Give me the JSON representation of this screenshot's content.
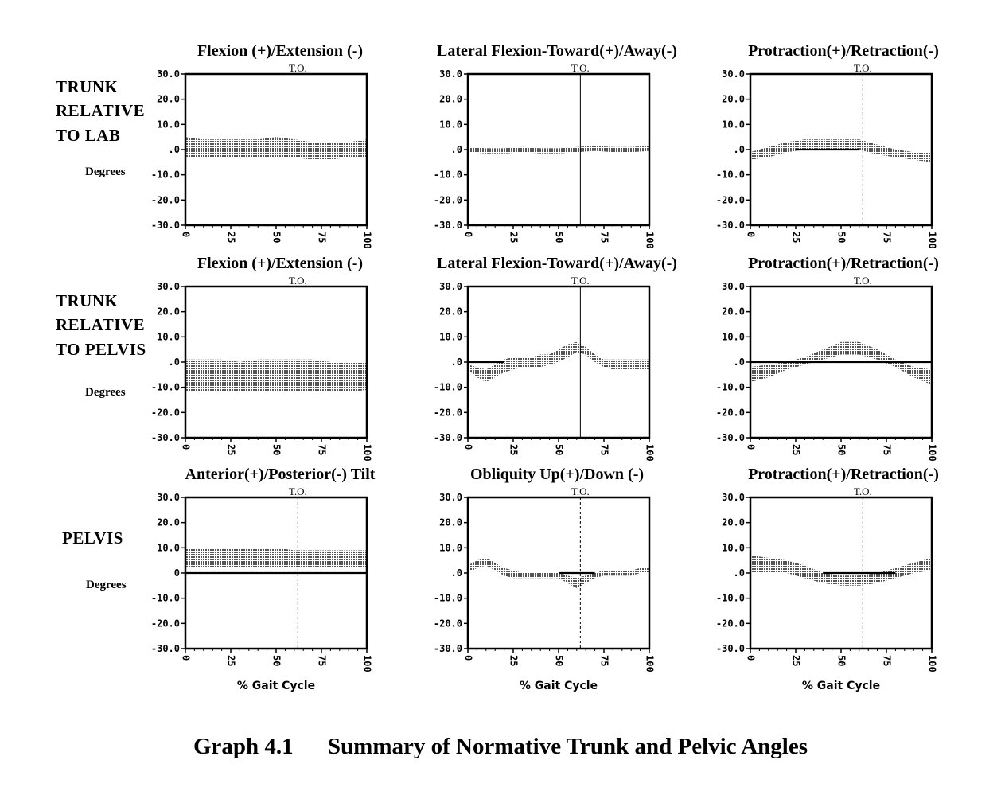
{
  "caption": {
    "number": "Graph 4.1",
    "text": "Summary of Normative Trunk and Pelvic Angles"
  },
  "row_labels": [
    {
      "lines": [
        "TRUNK",
        "RELATIVE",
        "TO LAB"
      ],
      "units": "Degrees"
    },
    {
      "lines": [
        "TRUNK",
        "RELATIVE",
        "TO PELVIS"
      ],
      "units": "Degrees"
    },
    {
      "lines": [
        "PELVIS"
      ],
      "units": "Degrees"
    }
  ],
  "colors": {
    "ink": "#000000",
    "band": "#555555",
    "paper": "#ffffff"
  },
  "chart_data": [
    {
      "type": "area",
      "row": 0,
      "col": 0,
      "title": "Flexion (+)/Extension (-)",
      "event_label": "T.O.",
      "event_x": null,
      "xlabel": "",
      "x": [
        0,
        10,
        20,
        30,
        40,
        50,
        60,
        70,
        80,
        90,
        100
      ],
      "xticks": [
        0,
        25,
        50,
        75,
        100
      ],
      "ylim": [
        -30,
        30
      ],
      "yticks": [
        "30.0",
        "20.0",
        "10.0",
        ".0",
        "-10.0",
        "-20.0",
        "-30.0"
      ],
      "series": [
        {
          "upper": [
            5,
            4,
            4,
            4,
            4,
            5,
            4,
            3,
            3,
            3,
            4
          ],
          "lower": [
            -3,
            -3,
            -3,
            -3,
            -3,
            -3,
            -3,
            -4,
            -4,
            -3,
            -3
          ]
        }
      ],
      "zero_line": null
    },
    {
      "type": "area",
      "row": 0,
      "col": 1,
      "title": "Lateral Flexion-Toward(+)/Away(-)",
      "event_label": "T.O.",
      "event_x": 62,
      "xlabel": "",
      "x": [
        0,
        10,
        20,
        30,
        40,
        50,
        60,
        70,
        80,
        90,
        100
      ],
      "xticks": [
        0,
        25,
        50,
        75,
        100
      ],
      "ylim": [
        -30,
        30
      ],
      "yticks": [
        "30.0",
        "20.0",
        "10.0",
        ".0",
        "-10.0",
        "-20.0",
        "-30.0"
      ],
      "series": [
        {
          "upper": [
            1,
            0.5,
            0.5,
            1,
            0.5,
            0.5,
            1,
            1.5,
            1,
            1,
            1.5
          ],
          "lower": [
            -1,
            -1.5,
            -1.5,
            -1,
            -1.5,
            -1.5,
            -1,
            -0.5,
            -1,
            -1,
            -0.5
          ]
        }
      ],
      "zero_line": null
    },
    {
      "type": "area",
      "row": 0,
      "col": 2,
      "title": "Protraction(+)/Retraction(-)",
      "event_label": "T.O.",
      "event_x": 62,
      "xlabel": "",
      "x": [
        0,
        10,
        20,
        30,
        40,
        50,
        60,
        70,
        80,
        90,
        100
      ],
      "xticks": [
        0,
        25,
        50,
        75,
        100
      ],
      "ylim": [
        -30,
        30
      ],
      "yticks": [
        "30.0",
        "20.0",
        "10.0",
        ".0",
        "-10.0",
        "-20.0",
        "-30.0"
      ],
      "series": [
        {
          "upper": [
            -1,
            1,
            3,
            4,
            4,
            4,
            4,
            2,
            0,
            -1,
            -1
          ],
          "lower": [
            -4,
            -3,
            -1,
            0,
            0,
            0,
            0,
            -2,
            -3,
            -4,
            -5
          ]
        }
      ],
      "zero_line": [
        25,
        60
      ]
    },
    {
      "type": "area",
      "row": 1,
      "col": 0,
      "title": "Flexion (+)/Extension (-)",
      "event_label": "T.O.",
      "event_x": null,
      "xlabel": "",
      "x": [
        0,
        10,
        20,
        30,
        40,
        50,
        60,
        70,
        80,
        90,
        100
      ],
      "xticks": [
        0,
        25,
        50,
        75,
        100
      ],
      "ylim": [
        -30,
        30
      ],
      "yticks": [
        "30.0",
        "20.0",
        "10.0",
        ".0",
        "-10.0",
        "-20.0",
        "-30.0"
      ],
      "series": [
        {
          "upper": [
            1,
            1,
            1,
            0,
            1,
            1,
            1,
            1,
            0,
            0,
            0
          ],
          "lower": [
            -12,
            -12,
            -12,
            -12,
            -12,
            -12,
            -12,
            -12,
            -12,
            -12,
            -11
          ]
        }
      ],
      "zero_line": null
    },
    {
      "type": "area",
      "row": 1,
      "col": 1,
      "title": "Lateral Flexion-Toward(+)/Away(-)",
      "event_label": "T.O.",
      "event_x": 62,
      "xlabel": "",
      "x": [
        0,
        5,
        10,
        15,
        20,
        25,
        30,
        35,
        40,
        45,
        50,
        55,
        60,
        65,
        70,
        75,
        80,
        85,
        90,
        95,
        100
      ],
      "xticks": [
        0,
        25,
        50,
        75,
        100
      ],
      "ylim": [
        -30,
        30
      ],
      "yticks": [
        "30.0",
        "20.0",
        "10.0",
        ".0",
        "-10.0",
        "-20.0",
        "-30.0"
      ],
      "series": [
        {
          "upper": [
            -1,
            -2,
            -3,
            -1,
            1,
            2,
            2,
            2,
            3,
            3,
            5,
            7,
            8,
            6,
            3,
            1,
            1,
            1,
            1,
            1,
            1
          ],
          "lower": [
            -3,
            -6,
            -8,
            -6,
            -4,
            -3,
            -2,
            -2,
            -2,
            -1,
            0,
            2,
            4,
            3,
            0,
            -2,
            -3,
            -3,
            -3,
            -3,
            -3
          ]
        }
      ],
      "zero_line": [
        0,
        20
      ]
    },
    {
      "type": "area",
      "row": 1,
      "col": 2,
      "title": "Protraction(+)/Retraction(-)",
      "event_label": "T.O.",
      "event_x": null,
      "xlabel": "",
      "x": [
        0,
        10,
        20,
        30,
        40,
        50,
        60,
        70,
        80,
        90,
        100
      ],
      "xticks": [
        0,
        25,
        50,
        75,
        100
      ],
      "ylim": [
        -30,
        30
      ],
      "yticks": [
        "30.0",
        "20.0",
        "10.0",
        ".0",
        "-10.0",
        "-20.0",
        "-30.0"
      ],
      "series": [
        {
          "upper": [
            -2,
            -1,
            0,
            2,
            5,
            8,
            8,
            5,
            1,
            -2,
            -3
          ],
          "lower": [
            -8,
            -6,
            -3,
            -1,
            1,
            3,
            3,
            1,
            -2,
            -6,
            -9
          ]
        }
      ],
      "zero_line": [
        0,
        100
      ]
    },
    {
      "type": "area",
      "row": 2,
      "col": 0,
      "title": "Anterior(+)/Posterior(-) Tilt",
      "event_label": "T.O.",
      "event_x": 62,
      "xlabel": "% Gait Cycle",
      "x": [
        0,
        10,
        20,
        30,
        40,
        50,
        60,
        70,
        80,
        90,
        100
      ],
      "xticks": [
        0,
        25,
        50,
        75,
        100
      ],
      "ylim": [
        -30,
        30
      ],
      "yticks": [
        "30.0",
        "20.0",
        "10.0",
        "0",
        "-10.0",
        "-20.0",
        "-30.0"
      ],
      "series": [
        {
          "upper": [
            10,
            10,
            10,
            10,
            10,
            10,
            9,
            9,
            9,
            9,
            9
          ],
          "lower": [
            2,
            2,
            2,
            2,
            2,
            2,
            2,
            2,
            2,
            2,
            2
          ]
        }
      ],
      "zero_line": [
        0,
        100
      ]
    },
    {
      "type": "area",
      "row": 2,
      "col": 1,
      "title": "Obliquity Up(+)/Down (-)",
      "event_label": "T.O.",
      "event_x": 62,
      "xlabel": "% Gait Cycle",
      "x": [
        0,
        5,
        10,
        15,
        20,
        25,
        30,
        35,
        40,
        45,
        50,
        55,
        60,
        65,
        70,
        75,
        80,
        85,
        90,
        95,
        100
      ],
      "xticks": [
        0,
        25,
        50,
        75,
        100
      ],
      "ylim": [
        -30,
        30
      ],
      "yticks": [
        "30.0",
        "20.0",
        "10.0",
        ".0",
        "-10.0",
        "-20.0",
        "-30.0"
      ],
      "series": [
        {
          "upper": [
            3,
            5,
            6,
            4,
            2,
            1,
            0,
            0,
            0,
            0,
            0,
            -1,
            -2,
            -1,
            0,
            1,
            1,
            1,
            1,
            2,
            2
          ],
          "lower": [
            0,
            2,
            3,
            1,
            -1,
            -2,
            -2,
            -2,
            -2,
            -2,
            -2,
            -4,
            -6,
            -4,
            -2,
            -1,
            -1,
            -1,
            -1,
            0,
            0
          ]
        }
      ],
      "zero_line": [
        50,
        70
      ]
    },
    {
      "type": "area",
      "row": 2,
      "col": 2,
      "title": "Protraction(+)/Retraction(-)",
      "event_label": "T.O.",
      "event_x": 62,
      "xlabel": "% Gait Cycle",
      "x": [
        0,
        10,
        20,
        30,
        40,
        50,
        60,
        70,
        80,
        90,
        100
      ],
      "xticks": [
        0,
        25,
        50,
        75,
        100
      ],
      "ylim": [
        -30,
        30
      ],
      "yticks": [
        "30.0",
        "20.0",
        "10.0",
        ".0",
        "-10.0",
        "-20.0",
        "-30.0"
      ],
      "series": [
        {
          "upper": [
            7,
            6,
            5,
            3,
            0,
            -1,
            -1,
            0,
            2,
            4,
            6
          ],
          "lower": [
            0,
            0,
            0,
            -2,
            -4,
            -5,
            -5,
            -4,
            -2,
            0,
            1
          ]
        }
      ],
      "zero_line": [
        40,
        80
      ]
    }
  ]
}
